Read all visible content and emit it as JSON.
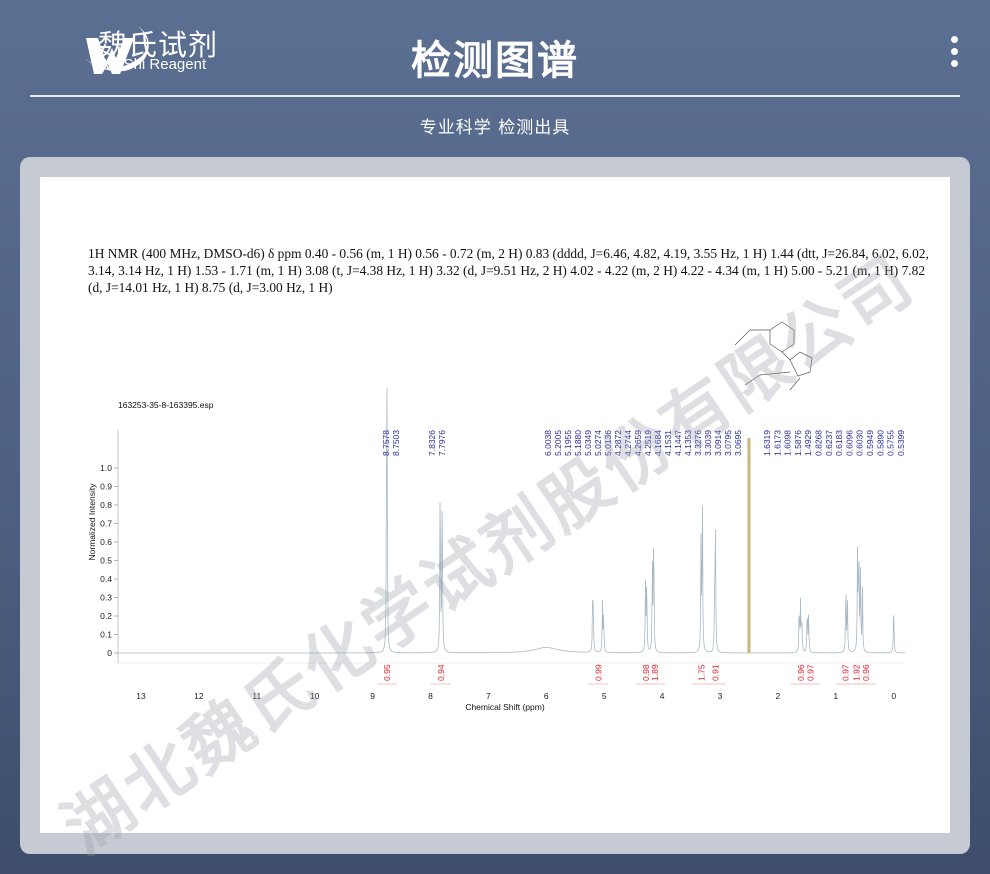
{
  "brand": {
    "name_cn": "魏氏试剂",
    "name_en": "WeiShi Reagent"
  },
  "header": {
    "title": "检测图谱",
    "subtitle": "专业科学 检测出具"
  },
  "watermark": "湖北魏氏化学试剂股份有限公司",
  "nmr_text": {
    "line1": "1H NMR (400 MHz, DMSO-d6) δ ppm 0.40 - 0.56 (m, 1 H) 0.56 - 0.72 (m, 2 H) 0.83 (dddd, J=6.46, 4.82, 4.19, 3.55 Hz, 1 H) 1.44 (dtt, J=26.84, 6.02, 6.02,",
    "line2": "3.14, 3.14 Hz, 1 H) 1.53 - 1.71 (m, 1 H) 3.08 (t, J=4.38 Hz, 1 H) 3.32 (d, J=9.51 Hz, 2 H) 4.02 - 4.22 (m, 2 H) 4.22 - 4.34 (m, 1 H) 5.00 - 5.21 (m, 1 H) 7.82",
    "line3": "(d, J=14.01 Hz, 1 H) 8.75 (d, J=3.00 Hz, 1 H)"
  },
  "chart_data": {
    "type": "line",
    "title": "163253-35-8-163395.esp",
    "xlabel": "Chemical Shift (ppm)",
    "ylabel": "Normalized Intensity",
    "xlim": [
      13.3,
      -0.2
    ],
    "ylim": [
      -0.05,
      1.1
    ],
    "x_ticks": [
      13,
      12,
      11,
      10,
      9,
      8,
      7,
      6,
      5,
      4,
      3,
      2,
      1,
      0
    ],
    "y_ticks": [
      "1.0",
      "0.9",
      "0.8",
      "0.7",
      "0.6",
      "0.5",
      "0.4",
      "0.3",
      "0.2",
      "0.1",
      "0"
    ],
    "grid": false,
    "peaks": [
      {
        "ppm": 8.757,
        "height": 1.0
      },
      {
        "ppm": 8.75,
        "height": 0.95
      },
      {
        "ppm": 7.833,
        "height": 0.98
      },
      {
        "ppm": 7.798,
        "height": 0.97
      },
      {
        "ppm": 6.0,
        "height": 0.03
      },
      {
        "ppm": 5.2,
        "height": 0.26
      },
      {
        "ppm": 5.19,
        "height": 0.22
      },
      {
        "ppm": 5.03,
        "height": 0.27
      },
      {
        "ppm": 5.01,
        "height": 0.2
      },
      {
        "ppm": 4.287,
        "height": 0.36
      },
      {
        "ppm": 4.266,
        "height": 0.42
      },
      {
        "ppm": 4.168,
        "height": 0.5
      },
      {
        "ppm": 4.145,
        "height": 0.7
      },
      {
        "ppm": 3.328,
        "height": 0.6
      },
      {
        "ppm": 3.304,
        "height": 0.83
      },
      {
        "ppm": 3.091,
        "height": 0.4
      },
      {
        "ppm": 3.078,
        "height": 0.6
      },
      {
        "ppm": 2.5,
        "height": 1.1,
        "note": "solvent"
      },
      {
        "ppm": 1.632,
        "height": 0.25
      },
      {
        "ppm": 1.609,
        "height": 0.27
      },
      {
        "ppm": 1.588,
        "height": 0.2
      },
      {
        "ppm": 1.493,
        "height": 0.25
      },
      {
        "ppm": 1.47,
        "height": 0.2
      },
      {
        "ppm": 0.827,
        "height": 0.38
      },
      {
        "ppm": 0.8,
        "height": 0.3
      },
      {
        "ppm": 0.624,
        "height": 0.55
      },
      {
        "ppm": 0.603,
        "height": 0.6
      },
      {
        "ppm": 0.575,
        "height": 0.45
      },
      {
        "ppm": 0.54,
        "height": 0.35
      },
      {
        "ppm": 0.0,
        "height": 0.27
      }
    ],
    "peak_label_groups": [
      [
        "8.7578",
        "8.7503"
      ],
      [
        "7.8326",
        "7.7976"
      ],
      [
        "6.0038",
        "5.2005",
        "5.1955",
        "5.1880",
        "5.0349",
        "5.0274",
        "5.0136",
        "4.2872",
        "4.2744",
        "4.2659",
        "4.2519",
        "4.1684",
        "4.1531",
        "4.1447",
        "4.1353",
        "3.3276",
        "3.3039",
        "3.0914",
        "3.0795",
        "3.0695"
      ],
      [
        "1.6319",
        "1.6173",
        "1.6098",
        "1.5876",
        "1.4929",
        "0.8268",
        "0.6237",
        "0.6183",
        "0.6096",
        "0.6030",
        "0.5949",
        "0.5890",
        "0.5755",
        "0.5399"
      ]
    ],
    "integrals": [
      {
        "ppm": 8.75,
        "value": "0.95"
      },
      {
        "ppm": 7.82,
        "value": "0.94"
      },
      {
        "ppm": 5.1,
        "value": "0.99"
      },
      {
        "ppm": 4.28,
        "value": "0.98"
      },
      {
        "ppm": 4.12,
        "value": "1.89"
      },
      {
        "ppm": 3.32,
        "value": "1.75"
      },
      {
        "ppm": 3.08,
        "value": "0.91"
      },
      {
        "ppm": 1.6,
        "value": "0.96"
      },
      {
        "ppm": 1.44,
        "value": "0.97"
      },
      {
        "ppm": 0.83,
        "value": "0.97"
      },
      {
        "ppm": 0.64,
        "value": "1.92"
      },
      {
        "ppm": 0.48,
        "value": "0.96"
      }
    ],
    "colors": {
      "spectrum": "#a9b9c6",
      "peak_labels": "#2a2aa0",
      "integrals": "#e0202a",
      "solvent": "#c8b880"
    }
  }
}
